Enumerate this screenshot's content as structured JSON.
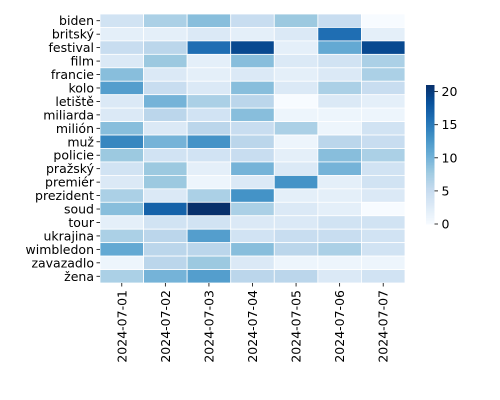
{
  "chart_data": {
    "type": "heatmap",
    "title": "",
    "xlabel": "",
    "ylabel": "",
    "x": [
      "2024-07-01",
      "2024-07-02",
      "2024-07-03",
      "2024-07-04",
      "2024-07-05",
      "2024-07-06",
      "2024-07-07"
    ],
    "y": [
      "biden",
      "britský",
      "festival",
      "film",
      "francie",
      "kolo",
      "letiště",
      "miliarda",
      "milión",
      "muž",
      "policie",
      "pražský",
      "premiér",
      "prezident",
      "soud",
      "tour",
      "ukrajina",
      "wimbledon",
      "zavazadlo",
      "žena"
    ],
    "values": [
      [
        4,
        7,
        9,
        5,
        8,
        5,
        0
      ],
      [
        2,
        2,
        3,
        2,
        3,
        16,
        2
      ],
      [
        5,
        6,
        16,
        19,
        2,
        11,
        19
      ],
      [
        3,
        8,
        2,
        9,
        3,
        4,
        7
      ],
      [
        9,
        3,
        2,
        3,
        2,
        3,
        7
      ],
      [
        12,
        5,
        3,
        9,
        3,
        7,
        5
      ],
      [
        3,
        10,
        7,
        6,
        0,
        3,
        2
      ],
      [
        3,
        6,
        4,
        9,
        1,
        1,
        1
      ],
      [
        9,
        3,
        6,
        5,
        7,
        1,
        4
      ],
      [
        14,
        10,
        13,
        6,
        1,
        6,
        5
      ],
      [
        8,
        4,
        4,
        5,
        2,
        9,
        7
      ],
      [
        4,
        8,
        2,
        10,
        3,
        10,
        4
      ],
      [
        3,
        8,
        1,
        3,
        13,
        2,
        4
      ],
      [
        7,
        3,
        7,
        13,
        2,
        2,
        3
      ],
      [
        9,
        17,
        21,
        7,
        3,
        2,
        0
      ],
      [
        2,
        4,
        4,
        3,
        3,
        4,
        4
      ],
      [
        7,
        6,
        12,
        4,
        5,
        5,
        4
      ],
      [
        11,
        6,
        6,
        9,
        6,
        7,
        4
      ],
      [
        1,
        6,
        8,
        3,
        1,
        1,
        1
      ],
      [
        7,
        10,
        12,
        6,
        6,
        3,
        4
      ]
    ],
    "colorbar": {
      "ticks": [
        0,
        5,
        10,
        15,
        20
      ],
      "range": [
        0,
        21
      ]
    },
    "colormap": "Blues",
    "grid": false,
    "legend": "colorbar-right"
  }
}
